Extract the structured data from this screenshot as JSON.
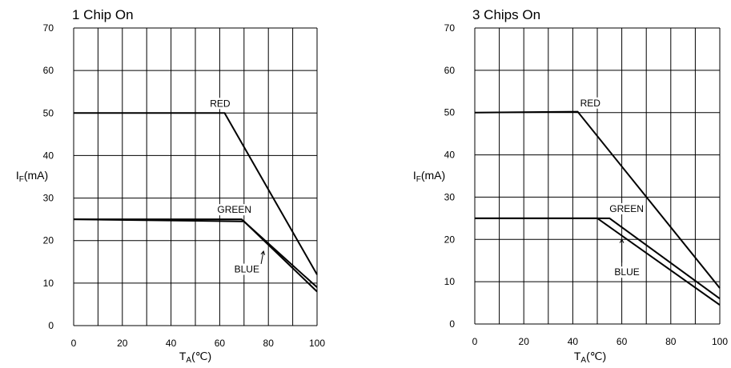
{
  "chart_data": [
    {
      "type": "line",
      "title": "1 Chip On",
      "xlabel": {
        "main": "T",
        "sub": "A",
        "unit": "(℃)"
      },
      "ylabel": {
        "main": "I",
        "sub": "F",
        "unit": "(mA)"
      },
      "xlim": [
        0,
        100
      ],
      "ylim": [
        0,
        70
      ],
      "x_ticks": [
        "0",
        "20",
        "40",
        "60",
        "80",
        "100"
      ],
      "y_ticks": [
        "0",
        "10",
        "20",
        "30",
        "40",
        "50",
        "60",
        "70"
      ],
      "grid": true,
      "series": [
        {
          "name": "RED",
          "points": [
            [
              0,
              50
            ],
            [
              62,
              50
            ],
            [
              100,
              12
            ]
          ]
        },
        {
          "name": "GREEN",
          "points": [
            [
              0,
              25
            ],
            [
              69,
              25
            ],
            [
              100,
              9
            ]
          ]
        },
        {
          "name": "BLUE",
          "points": [
            [
              0,
              25
            ],
            [
              70,
              24.5
            ],
            [
              100,
              8
            ]
          ]
        }
      ]
    },
    {
      "type": "line",
      "title": "3 Chips On",
      "xlabel": {
        "main": "T",
        "sub": "A",
        "unit": "(℃)"
      },
      "ylabel": {
        "main": "I",
        "sub": "F",
        "unit": "(mA)"
      },
      "xlim": [
        0,
        100
      ],
      "ylim": [
        0,
        70
      ],
      "x_ticks": [
        "0",
        "20",
        "40",
        "60",
        "80",
        "100"
      ],
      "y_ticks": [
        "0",
        "10",
        "20",
        "30",
        "40",
        "50",
        "60",
        "70"
      ],
      "grid": true,
      "series": [
        {
          "name": "RED",
          "points": [
            [
              0,
              50
            ],
            [
              42,
              50.2
            ],
            [
              100,
              8.5
            ]
          ]
        },
        {
          "name": "GREEN",
          "points": [
            [
              0,
              25
            ],
            [
              55,
              25
            ],
            [
              100,
              6
            ]
          ]
        },
        {
          "name": "BLUE",
          "points": [
            [
              0,
              25
            ],
            [
              50,
              25
            ],
            [
              100,
              4.5
            ]
          ]
        }
      ]
    }
  ]
}
